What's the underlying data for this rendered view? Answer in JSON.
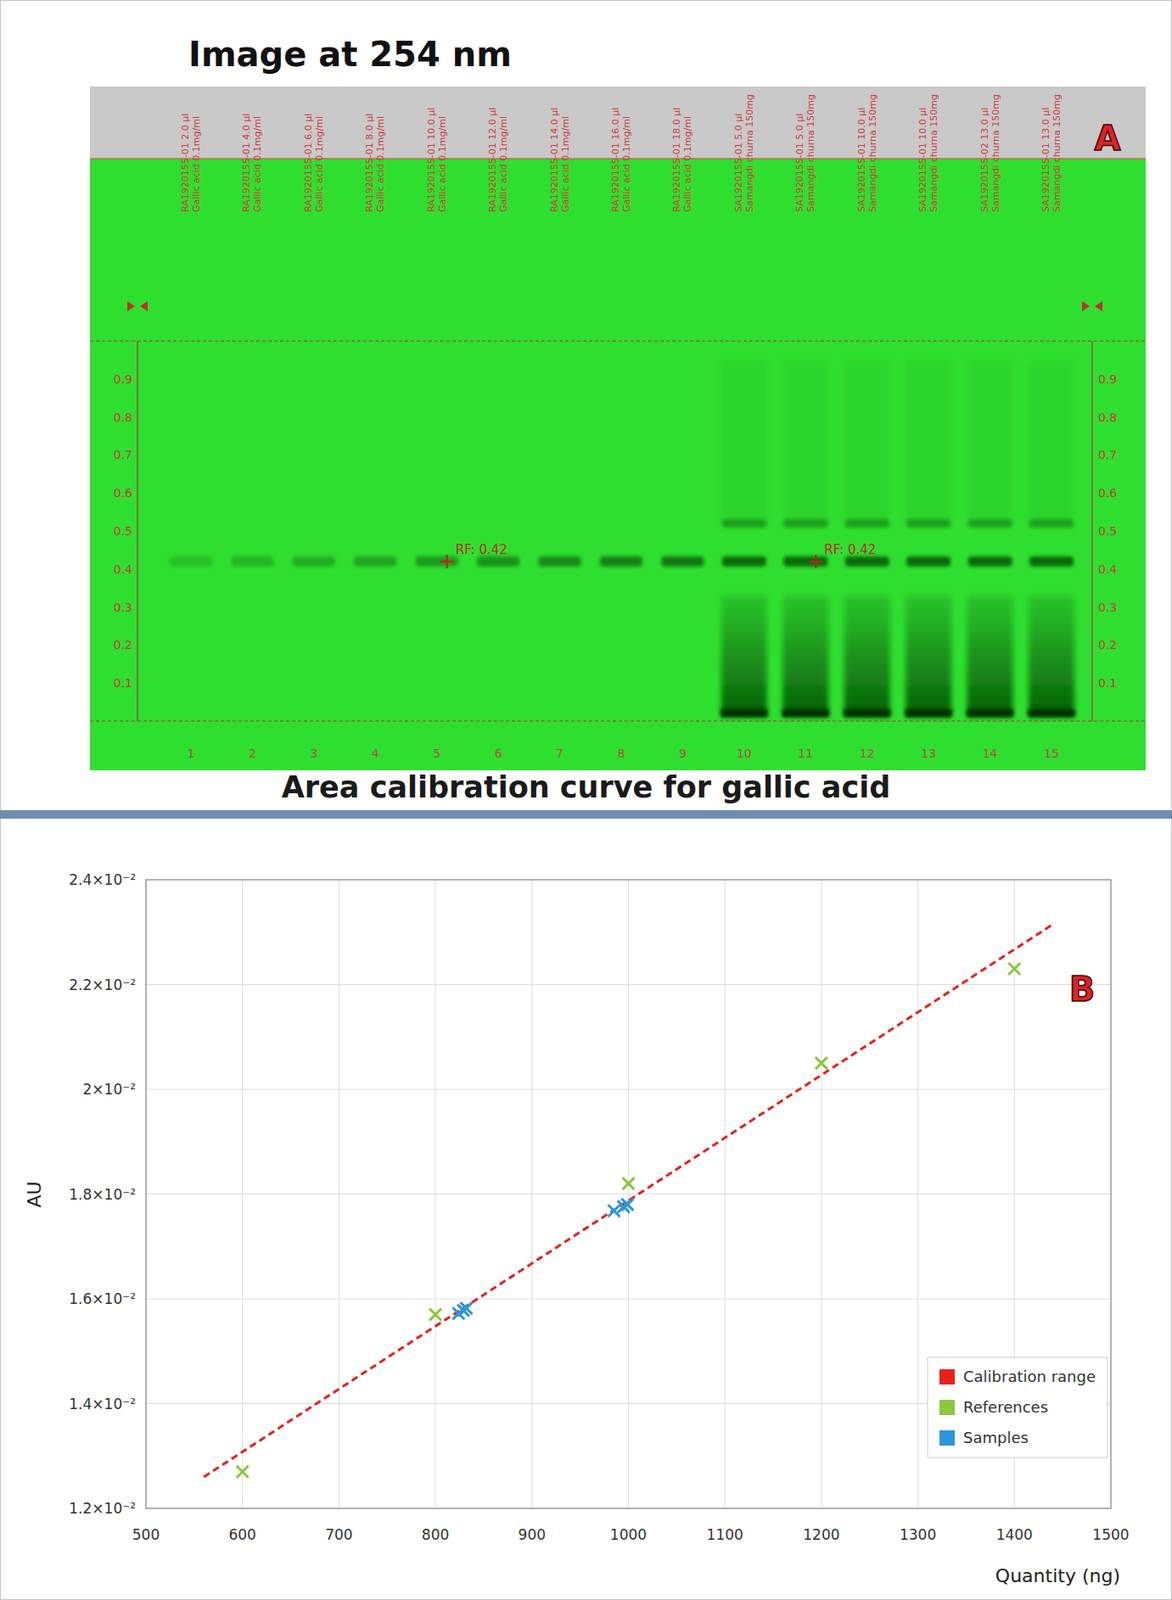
{
  "plate": {
    "title": "Image at 254 nm",
    "panel_label": "A",
    "rf_lim": [
      0,
      1
    ],
    "rf_ticks": [
      0.1,
      0.2,
      0.3,
      0.4,
      0.5,
      0.6,
      0.7,
      0.8,
      0.9
    ],
    "lanes": [
      {
        "number": 1,
        "type": "reference",
        "label": [
          "RA1920155-01 2.0 µl",
          "Gallic acid 0.1mg/ml"
        ]
      },
      {
        "number": 2,
        "type": "reference",
        "label": [
          "RA1920155-01 4.0 µl",
          "Gallic acid 0.1mg/ml"
        ]
      },
      {
        "number": 3,
        "type": "reference",
        "label": [
          "RA1920155-01 6.0 µl",
          "Gallic acid 0.1mg/ml"
        ]
      },
      {
        "number": 4,
        "type": "reference",
        "label": [
          "RA1920155-01 8.0 µl",
          "Gallic acid 0.1mg/ml"
        ]
      },
      {
        "number": 5,
        "type": "reference",
        "label": [
          "RA1920155-01 10.0 µl",
          "Gallic acid 0.1mg/ml"
        ]
      },
      {
        "number": 6,
        "type": "reference",
        "label": [
          "RA1920155-01 12.0 µl",
          "Gallic acid 0.1mg/ml"
        ]
      },
      {
        "number": 7,
        "type": "reference",
        "label": [
          "RA1920155-01 14.0 µl",
          "Gallic acid 0.1mg/ml"
        ]
      },
      {
        "number": 8,
        "type": "reference",
        "label": [
          "RA1920155-01 16.0 µl",
          "Gallic acid 0.1mg/ml"
        ]
      },
      {
        "number": 9,
        "type": "reference",
        "label": [
          "RA1920155-01 18.0 µl",
          "Gallic acid 0.1mg/ml"
        ]
      },
      {
        "number": 10,
        "type": "sample",
        "label": [
          "SA1920155-01 5.0 µl",
          "Samangdi churna 150mg"
        ]
      },
      {
        "number": 11,
        "type": "sample",
        "label": [
          "SA1920155-01 5.0 µl",
          "Samangdi churna 150mg"
        ]
      },
      {
        "number": 12,
        "type": "sample",
        "label": [
          "SA1920155-01 10.0 µl",
          "Samangdi churna 150mg"
        ]
      },
      {
        "number": 13,
        "type": "sample",
        "label": [
          "SA1920155-01 10.0 µl",
          "Samangdi churna 150mg"
        ]
      },
      {
        "number": 14,
        "type": "sample",
        "label": [
          "SA1920155-02 13.0 µl",
          "Samangdi churna 150mg"
        ]
      },
      {
        "number": 15,
        "type": "sample",
        "label": [
          "SA1920155-01 13.0 µl",
          "Samangdi churna 150mg"
        ]
      }
    ],
    "zones": {
      "main_band": 0.42,
      "upper_band": 0.52,
      "smear_top": 0.33,
      "origin": 0.02
    },
    "annotation": {
      "label": "RF: 0.42",
      "value": 0.42,
      "lanes": [
        5,
        11
      ]
    }
  },
  "chart_data": {
    "type": "scatter",
    "title": "Area calibration curve for gallic acid",
    "panel_label": "B",
    "x_label": "Quantity (ng)",
    "y_label": "AU",
    "xlim": [
      500,
      1500
    ],
    "xticks": [
      500,
      600,
      700,
      800,
      900,
      1000,
      1100,
      1200,
      1300,
      1400,
      1500
    ],
    "ylim": [
      0.012,
      0.024
    ],
    "yticks": [
      {
        "value": 0.012,
        "label": "1.2×10⁻²"
      },
      {
        "value": 0.014,
        "label": "1.4×10⁻²"
      },
      {
        "value": 0.016,
        "label": "1.6×10⁻²"
      },
      {
        "value": 0.018,
        "label": "1.8×10⁻²"
      },
      {
        "value": 0.02,
        "label": "2×10⁻²"
      },
      {
        "value": 0.022,
        "label": "2.2×10⁻²"
      },
      {
        "value": 0.024,
        "label": "2.4×10⁻²"
      }
    ],
    "grid": true,
    "legend": "bottom right",
    "series": [
      {
        "name": "Calibration range",
        "type": "line",
        "color": "#e8201c",
        "line_style": "dashed",
        "x": [
          560,
          1440
        ],
        "values": [
          0.0126,
          0.02315
        ]
      },
      {
        "name": "References",
        "color": "#8dc63f",
        "marker": "x",
        "x": [
          600,
          800,
          1000,
          1200,
          1400
        ],
        "values": [
          0.0127,
          0.0157,
          0.0182,
          0.0205,
          0.0223
        ]
      },
      {
        "name": "Samples",
        "color": "#2e95db",
        "marker": "x",
        "x": [
          824,
          829,
          832,
          985,
          995,
          999
        ],
        "values": [
          0.01572,
          0.01578,
          0.01582,
          0.01768,
          0.01776,
          0.0178
        ]
      }
    ]
  }
}
